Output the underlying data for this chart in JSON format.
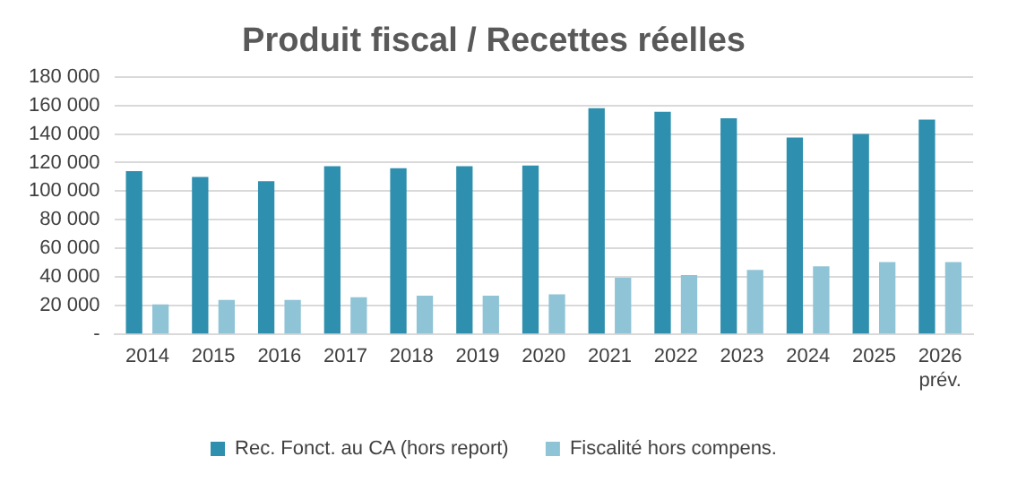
{
  "chart_data": {
    "type": "bar",
    "title": "Produit fiscal / Recettes réelles",
    "categories": [
      "2014",
      "2015",
      "2016",
      "2017",
      "2018",
      "2019",
      "2020",
      "2021",
      "2022",
      "2023",
      "2024",
      "2025",
      "2026\nprév."
    ],
    "series": [
      {
        "name": "Rec. Fonct. au CA (hors report)",
        "color": "#2e8fae",
        "values": [
          114000,
          110000,
          107000,
          117500,
          116000,
          117500,
          118000,
          158000,
          155500,
          151000,
          137500,
          140000,
          150000
        ]
      },
      {
        "name": "Fiscalité hors compens.",
        "color": "#8fc3d6",
        "values": [
          21000,
          24000,
          24000,
          26000,
          27000,
          27000,
          28000,
          39500,
          41500,
          45000,
          47500,
          50500,
          50500
        ]
      }
    ],
    "ylim": [
      0,
      180000
    ],
    "yticks": [
      {
        "value": 0,
        "label": "-"
      },
      {
        "value": 20000,
        "label": "20 000"
      },
      {
        "value": 40000,
        "label": "40 000"
      },
      {
        "value": 60000,
        "label": "60 000"
      },
      {
        "value": 80000,
        "label": "80 000"
      },
      {
        "value": 100000,
        "label": "100 000"
      },
      {
        "value": 120000,
        "label": "120 000"
      },
      {
        "value": 140000,
        "label": "140 000"
      },
      {
        "value": 160000,
        "label": "160 000"
      },
      {
        "value": 180000,
        "label": "180 000"
      }
    ],
    "grid": "y",
    "legend": "bottom"
  }
}
